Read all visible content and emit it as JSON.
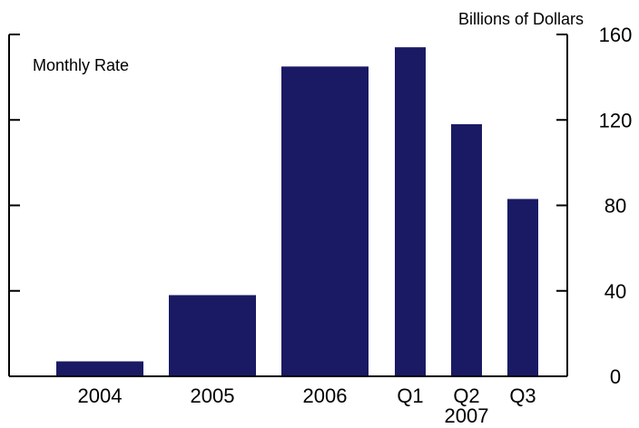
{
  "chart_data": {
    "type": "bar",
    "title": "",
    "ylabel": "Billions of Dollars",
    "annotation": "Monthly Rate",
    "ylim": [
      0,
      160
    ],
    "yticks": [
      0,
      40,
      80,
      120,
      160
    ],
    "categories": [
      "2004",
      "2005",
      "2006",
      "Q1",
      "Q2",
      "Q3"
    ],
    "group_label": "2007",
    "values": [
      7,
      38,
      145,
      154,
      118,
      83
    ],
    "bar_color": "#1a1a64",
    "grid": false,
    "legend": "none"
  }
}
